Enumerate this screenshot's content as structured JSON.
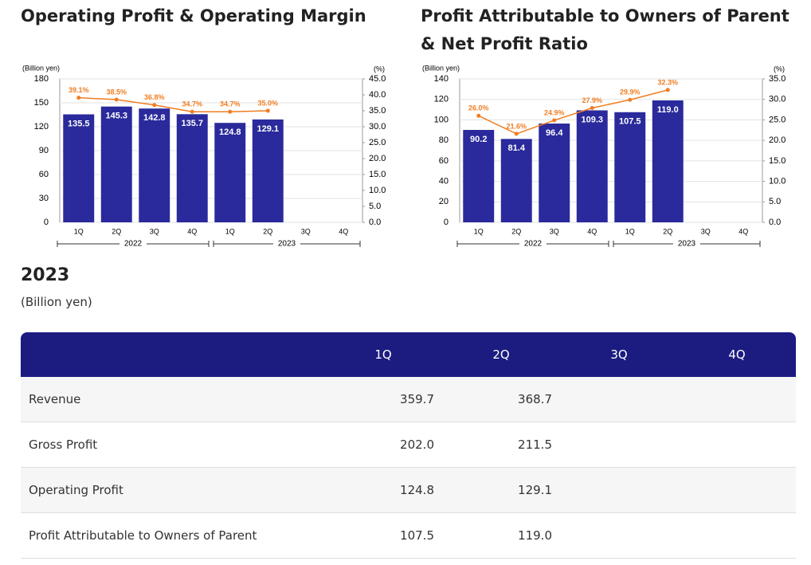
{
  "chart_data": [
    {
      "type": "bar",
      "title": "Operating Profit & Operating Margin",
      "y_label": "(Billion yen)",
      "y2_label": "(%)",
      "categories": [
        "1Q",
        "2Q",
        "3Q",
        "4Q",
        "1Q",
        "2Q",
        "3Q",
        "4Q"
      ],
      "groups": [
        "2022",
        "2023"
      ],
      "ylim": [
        0,
        180
      ],
      "yticks": [
        0,
        30,
        60,
        90,
        120,
        150,
        180
      ],
      "y2lim": [
        0,
        45
      ],
      "y2ticks": [
        {
          "value": 0,
          "label": "0.0"
        },
        {
          "value": 5,
          "label": "5.0"
        },
        {
          "value": 10,
          "label": "10.0"
        },
        {
          "value": 15,
          "label": "15.0"
        },
        {
          "value": 20,
          "label": "20.0"
        },
        {
          "value": 25,
          "label": "25.0"
        },
        {
          "value": 30,
          "label": "30.0"
        },
        {
          "value": 35,
          "label": "35.0"
        },
        {
          "value": 40,
          "label": "40.0"
        },
        {
          "value": 45,
          "label": "45.0"
        }
      ],
      "grid": true,
      "series": [
        {
          "type": "bar",
          "color": "#2a2a9c",
          "values": [
            135.5,
            145.3,
            142.8,
            135.7,
            124.8,
            129.1,
            null,
            null
          ],
          "value_labels": [
            "135.5",
            "145.3",
            "142.8",
            "135.7",
            "124.8",
            "129.1",
            null,
            null
          ]
        },
        {
          "type": "line",
          "axis": "y2",
          "color": "#f07d22",
          "values": [
            39.1,
            38.5,
            36.8,
            34.7,
            34.7,
            35.0,
            null,
            null
          ],
          "value_labels": [
            "39.1%",
            "38.5%",
            "36.8%",
            "34.7%",
            "34.7%",
            "35.0%",
            null,
            null
          ]
        }
      ]
    },
    {
      "type": "bar",
      "title": "Profit Attributable to Owners of Parent & Net Profit Ratio",
      "y_label": "(Billion yen)",
      "y2_label": "(%)",
      "categories": [
        "1Q",
        "2Q",
        "3Q",
        "4Q",
        "1Q",
        "2Q",
        "3Q",
        "4Q"
      ],
      "groups": [
        "2022",
        "2023"
      ],
      "ylim": [
        0,
        140
      ],
      "yticks": [
        0,
        20,
        40,
        60,
        80,
        100,
        120,
        140
      ],
      "y2lim": [
        0,
        35
      ],
      "y2ticks": [
        {
          "value": 0,
          "label": "0.0"
        },
        {
          "value": 5,
          "label": "5.0"
        },
        {
          "value": 10,
          "label": "10.0"
        },
        {
          "value": 15,
          "label": "15.0"
        },
        {
          "value": 20,
          "label": "20.0"
        },
        {
          "value": 25,
          "label": "25.0"
        },
        {
          "value": 30,
          "label": "30.0"
        },
        {
          "value": 35,
          "label": "35.0"
        }
      ],
      "grid": true,
      "series": [
        {
          "type": "bar",
          "color": "#2a2a9c",
          "values": [
            90.2,
            81.4,
            96.4,
            109.3,
            107.5,
            119.0,
            null,
            null
          ],
          "value_labels": [
            "90.2",
            "81.4",
            "96.4",
            "109.3",
            "107.5",
            "119.0",
            null,
            null
          ]
        },
        {
          "type": "line",
          "axis": "y2",
          "color": "#f07d22",
          "values": [
            26.0,
            21.6,
            24.9,
            27.9,
            29.9,
            32.3,
            null,
            null
          ],
          "value_labels": [
            "26.0%",
            "21.6%",
            "24.9%",
            "27.9%",
            "29.9%",
            "32.3%",
            null,
            null
          ]
        }
      ]
    }
  ],
  "section": {
    "title": "2023",
    "unit": "(Billion yen)"
  },
  "table": {
    "header": [
      "1Q",
      "2Q",
      "3Q",
      "4Q"
    ],
    "rows": [
      {
        "label": "Revenue",
        "values": [
          "359.7",
          "368.7"
        ]
      },
      {
        "label": "Gross Profit",
        "values": [
          "202.0",
          "211.5"
        ]
      },
      {
        "label": "Operating Profit",
        "values": [
          "124.8",
          "129.1"
        ]
      },
      {
        "label": "Profit Attributable to Owners of Parent",
        "values": [
          "107.5",
          "119.0"
        ]
      }
    ]
  }
}
